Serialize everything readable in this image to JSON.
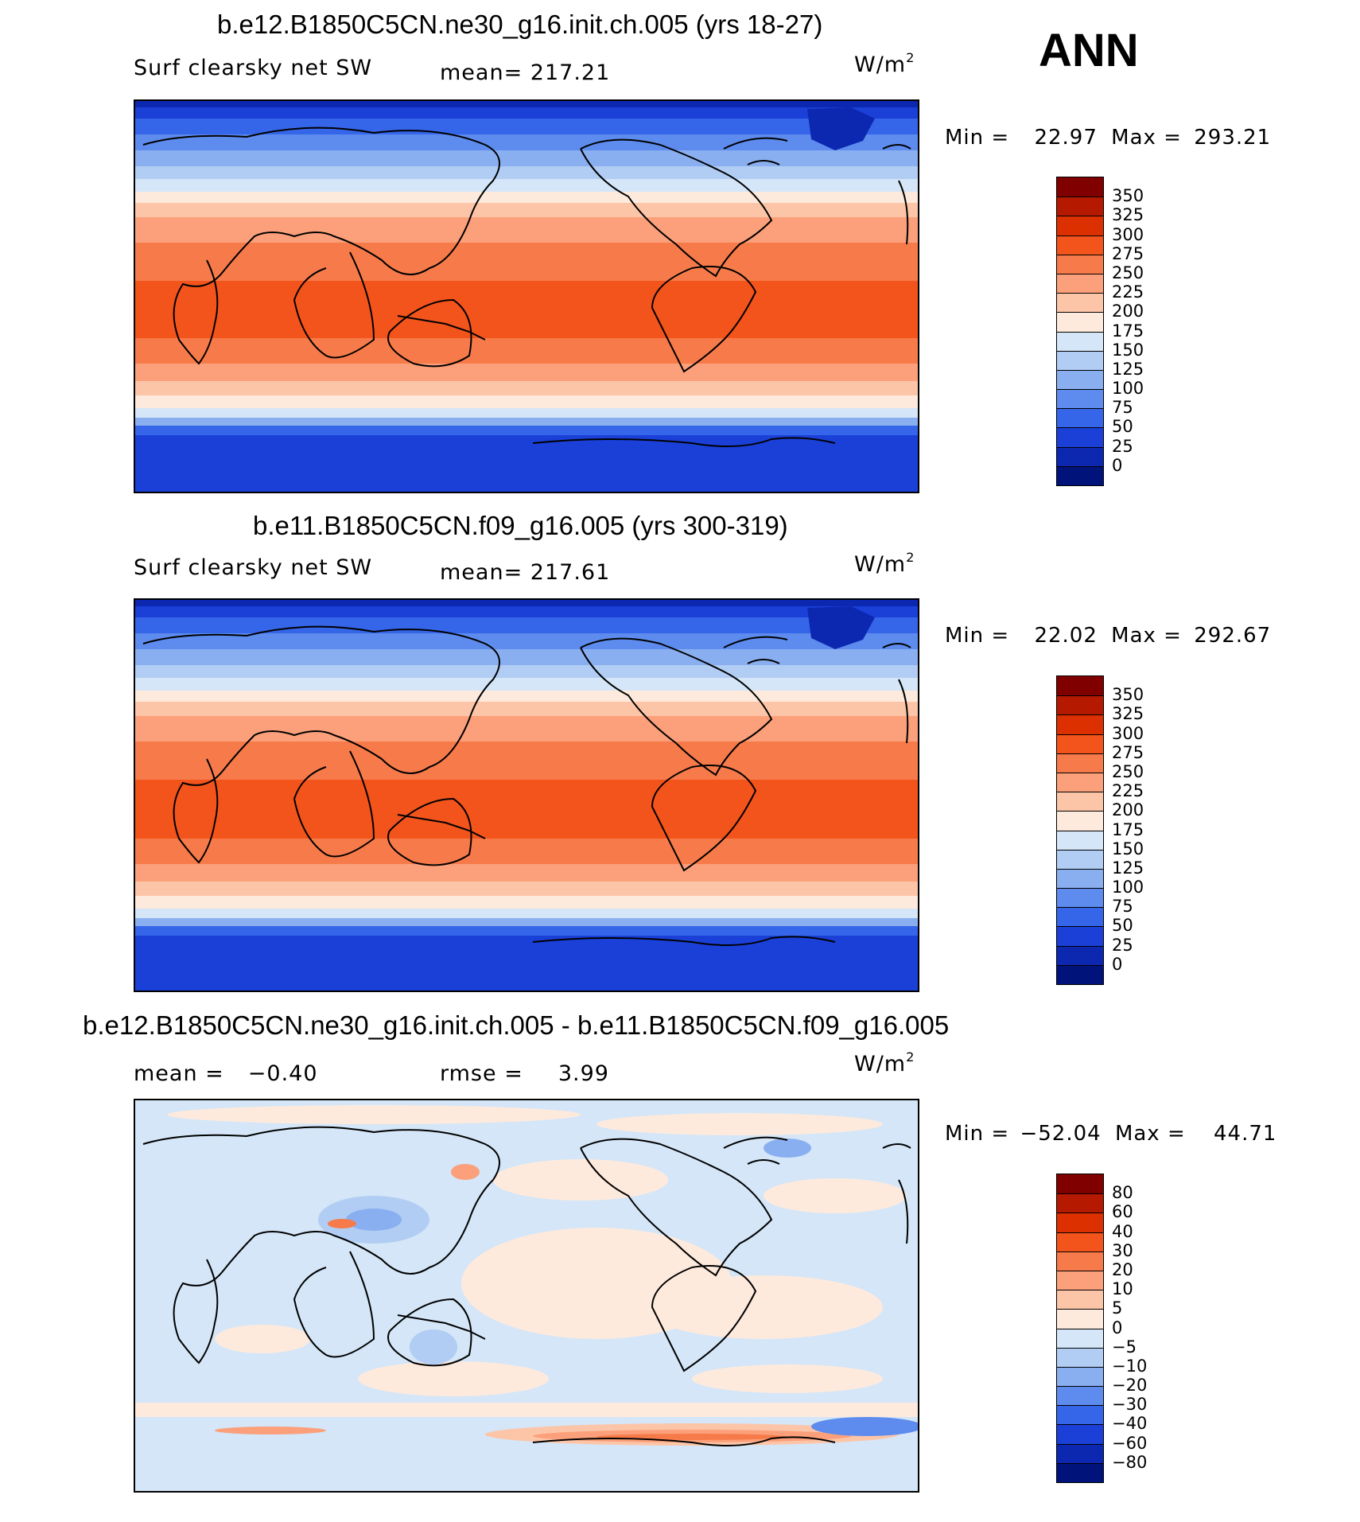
{
  "season": "ANN",
  "units_base": "W/m",
  "units_exp": "2",
  "panels": [
    {
      "title": "b.e12.B1850C5CN.ne30_g16.init.ch.005 (yrs 18-27)",
      "variable": "Surf clearsky net SW",
      "mean_label": "mean=",
      "mean_value": "217.21",
      "min_label": "Min =",
      "min_value": "22.97",
      "max_label": "Max =",
      "max_value": "293.21",
      "levels": [
        "350",
        "325",
        "300",
        "275",
        "250",
        "225",
        "200",
        "175",
        "150",
        "125",
        "100",
        "75",
        "50",
        "25",
        "0"
      ],
      "colors": [
        "#800000",
        "#b51a00",
        "#dc3000",
        "#f2541c",
        "#f77b4a",
        "#fba07a",
        "#fdc5a8",
        "#feeadd",
        "#d4e6f7",
        "#b1cdf4",
        "#8aaff0",
        "#5d8cee",
        "#3565e8",
        "#1a40d8",
        "#0d28b0",
        "#00137a"
      ]
    },
    {
      "title": "b.e11.B1850C5CN.f09_g16.005 (yrs 300-319)",
      "variable": "Surf clearsky net SW",
      "mean_label": "mean=",
      "mean_value": "217.61",
      "min_label": "Min =",
      "min_value": "22.02",
      "max_label": "Max =",
      "max_value": "292.67",
      "levels": [
        "350",
        "325",
        "300",
        "275",
        "250",
        "225",
        "200",
        "175",
        "150",
        "125",
        "100",
        "75",
        "50",
        "25",
        "0"
      ],
      "colors": [
        "#800000",
        "#b51a00",
        "#dc3000",
        "#f2541c",
        "#f77b4a",
        "#fba07a",
        "#fdc5a8",
        "#feeadd",
        "#d4e6f7",
        "#b1cdf4",
        "#8aaff0",
        "#5d8cee",
        "#3565e8",
        "#1a40d8",
        "#0d28b0",
        "#00137a"
      ]
    },
    {
      "title": "b.e12.B1850C5CN.ne30_g16.init.ch.005 - b.e11.B1850C5CN.f09_g16.005",
      "mean_label": "mean =",
      "mean_value": "−0.40",
      "rmse_label": "rmse =",
      "rmse_value": "3.99",
      "min_label": "Min =",
      "min_value": "−52.04",
      "max_label": "Max =",
      "max_value": "44.71",
      "levels": [
        "80",
        "60",
        "40",
        "30",
        "20",
        "10",
        "5",
        "0",
        "−5",
        "−10",
        "−20",
        "−30",
        "−40",
        "−60",
        "−80"
      ],
      "colors": [
        "#800000",
        "#b51a00",
        "#dc3000",
        "#f2541c",
        "#f77b4a",
        "#fba07a",
        "#fdc5a8",
        "#feeadd",
        "#d4e6f7",
        "#b1cdf4",
        "#8aaff0",
        "#5d8cee",
        "#3565e8",
        "#1a40d8",
        "#0d28b0",
        "#00137a"
      ]
    }
  ],
  "chart_data": [
    {
      "type": "heatmap",
      "title": "b.e12.B1850C5CN.ne30_g16.init.ch.005 (yrs 18-27)",
      "variable": "Surf clearsky net SW",
      "units": "W/m2",
      "mean": 217.21,
      "min": 22.97,
      "max": 293.21,
      "contour_levels": [
        0,
        25,
        50,
        75,
        100,
        125,
        150,
        175,
        200,
        225,
        250,
        275,
        300,
        325,
        350
      ],
      "zonal_profile": {
        "lat": [
          90,
          80,
          70,
          60,
          50,
          40,
          30,
          20,
          10,
          0,
          -10,
          -20,
          -30,
          -40,
          -50,
          -60,
          -70,
          -80,
          -90
        ],
        "value": [
          23,
          60,
          95,
          135,
          185,
          230,
          262,
          285,
          292,
          293,
          290,
          275,
          250,
          215,
          170,
          110,
          60,
          40,
          35
        ]
      }
    },
    {
      "type": "heatmap",
      "title": "b.e11.B1850C5CN.f09_g16.005 (yrs 300-319)",
      "variable": "Surf clearsky net SW",
      "units": "W/m2",
      "mean": 217.61,
      "min": 22.02,
      "max": 292.67,
      "contour_levels": [
        0,
        25,
        50,
        75,
        100,
        125,
        150,
        175,
        200,
        225,
        250,
        275,
        300,
        325,
        350
      ],
      "zonal_profile": {
        "lat": [
          90,
          80,
          70,
          60,
          50,
          40,
          30,
          20,
          10,
          0,
          -10,
          -20,
          -30,
          -40,
          -50,
          -60,
          -70,
          -80,
          -90
        ],
        "value": [
          22,
          60,
          95,
          135,
          185,
          230,
          262,
          285,
          292,
          292,
          290,
          276,
          252,
          218,
          172,
          110,
          60,
          40,
          35
        ]
      }
    },
    {
      "type": "heatmap",
      "title": "b.e12.B1850C5CN.ne30_g16.init.ch.005 - b.e11.B1850C5CN.f09_g16.005",
      "units": "W/m2",
      "mean": -0.4,
      "rmse": 3.99,
      "min": -52.04,
      "max": 44.71,
      "contour_levels": [
        -80,
        -60,
        -40,
        -30,
        -20,
        -10,
        -5,
        0,
        5,
        10,
        20,
        30,
        40,
        60,
        80
      ]
    }
  ]
}
